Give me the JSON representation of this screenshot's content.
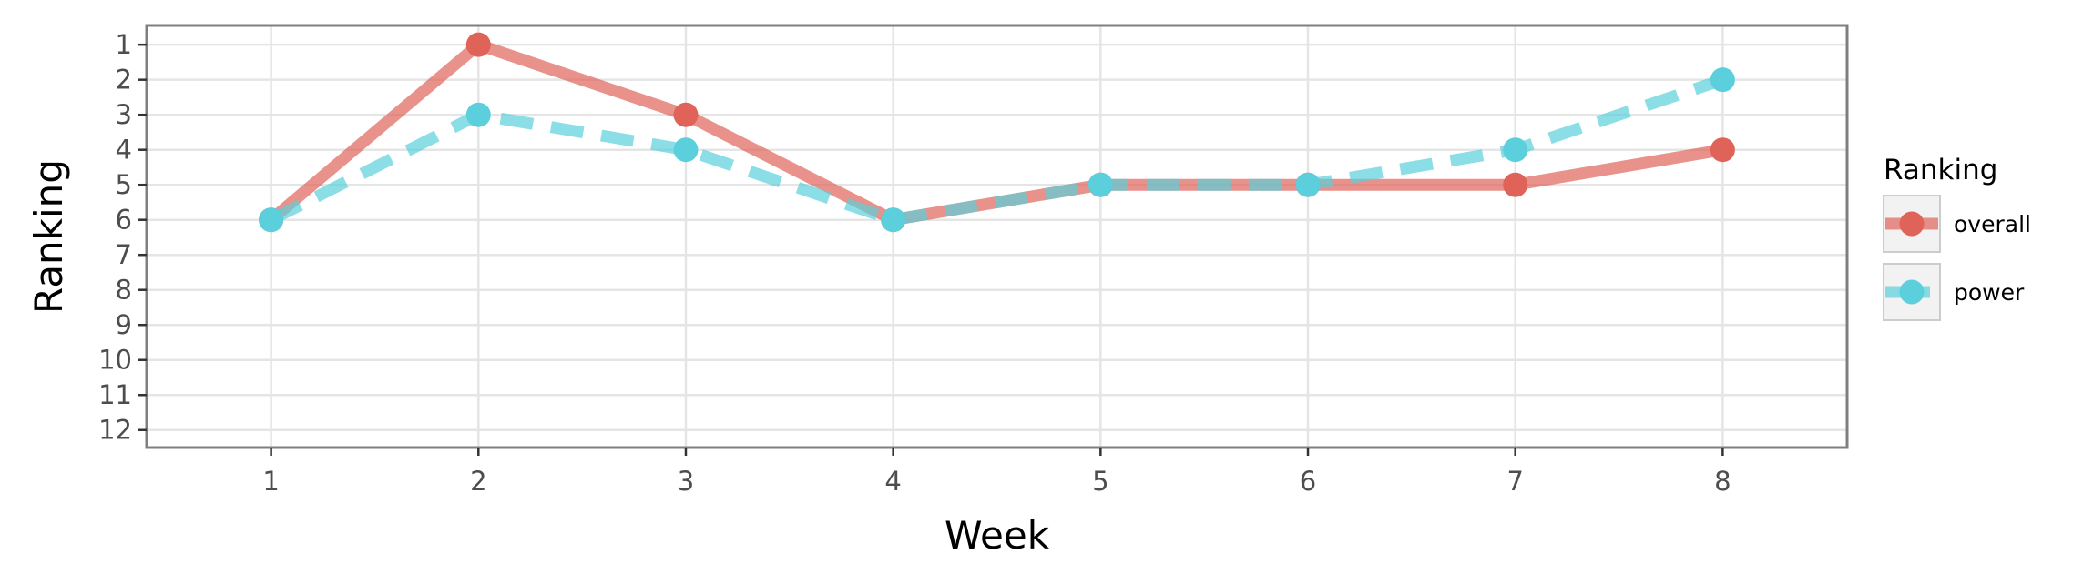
{
  "chart_data": {
    "type": "line",
    "title": "",
    "xlabel": "Week",
    "ylabel": "Ranking",
    "x": [
      1,
      2,
      3,
      4,
      5,
      6,
      7,
      8
    ],
    "xlim": [
      0.4,
      8.6
    ],
    "ylim": [
      12.5,
      0.45
    ],
    "y_reversed": true,
    "x_ticks": [
      "1",
      "2",
      "3",
      "4",
      "5",
      "6",
      "7",
      "8"
    ],
    "y_ticks": [
      "1",
      "2",
      "3",
      "4",
      "5",
      "6",
      "7",
      "8",
      "9",
      "10",
      "11",
      "12"
    ],
    "grid": true,
    "legend": {
      "title": "Ranking",
      "position": "right"
    },
    "series": [
      {
        "name": "overall",
        "values": [
          6,
          1,
          3,
          6,
          5,
          5,
          5,
          4
        ],
        "color": "#e0635a",
        "line_style": "solid"
      },
      {
        "name": "power",
        "values": [
          6,
          3,
          4,
          6,
          5,
          5,
          4,
          2
        ],
        "color": "#5bd0dc",
        "line_style": "dashed"
      }
    ]
  }
}
